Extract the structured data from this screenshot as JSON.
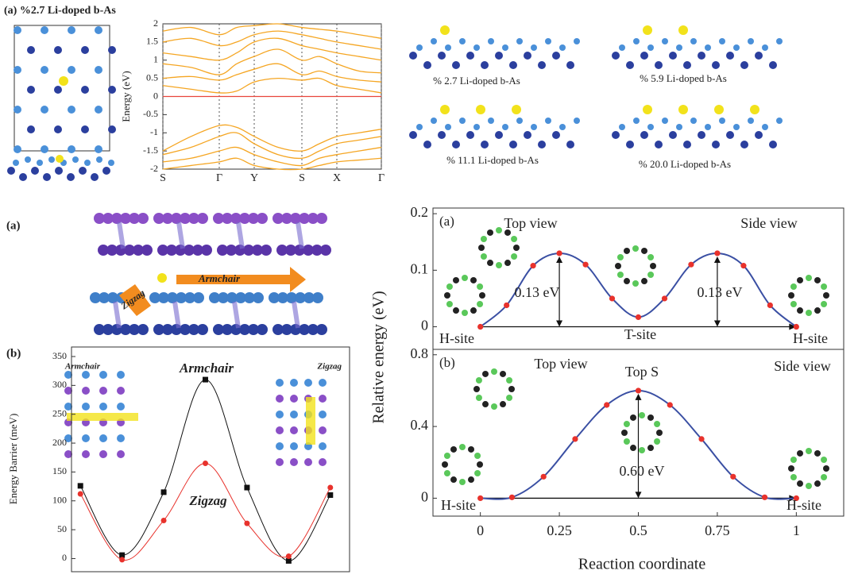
{
  "figure": {
    "panel_top_left": "(a) %2.7 Li-doped b-As",
    "structure_labels": [
      "% 2.7 Li-doped b-As",
      "% 5.9 Li-doped b-As",
      "% 11.1 Li-doped b-As",
      "% 20.0 Li-doped b-As"
    ],
    "panel_mid_left": "(a)",
    "arrow_armchair": "Armchair",
    "arrow_zigzag": "Zigzag",
    "inset_armchair": "Armchair",
    "inset_zigzag": "Zigzag"
  },
  "chart_data": [
    {
      "type": "line",
      "ylabel": "Energy (eV)",
      "x": [
        0,
        0.355,
        0.71,
        0.93,
        1.15,
        1.45,
        1.75,
        1.97,
        2.19,
        2.47,
        2.75
      ],
      "xlim": [
        0,
        2.75
      ],
      "xticks": [
        {
          "value": 0,
          "label": "S"
        },
        {
          "value": 0.71,
          "label": "Γ"
        },
        {
          "value": 1.15,
          "label": "Y"
        },
        {
          "value": 1.75,
          "label": "S"
        },
        {
          "value": 2.19,
          "label": "X"
        },
        {
          "value": 2.75,
          "label": "Γ"
        }
      ],
      "ylim": [
        -2,
        2
      ],
      "yticks": [
        -2,
        -1.5,
        -1,
        -0.5,
        0,
        0.5,
        1,
        1.5,
        2
      ],
      "reference_line": {
        "value": 0,
        "color": "#e8453c"
      },
      "series": [
        {
          "color": "#f5a623",
          "values": [
            0.3,
            0.2,
            0.1,
            0.15,
            0.4,
            0.5,
            0.45,
            0.5,
            0.3,
            0.2,
            0.1
          ]
        },
        {
          "color": "#f5a623",
          "values": [
            0.5,
            0.55,
            0.45,
            0.6,
            0.75,
            0.9,
            0.6,
            0.7,
            0.55,
            0.45,
            0.4
          ]
        },
        {
          "color": "#f5a623",
          "values": [
            0.9,
            0.8,
            0.6,
            0.9,
            1.1,
            1.3,
            1.0,
            1.1,
            0.9,
            0.7,
            0.65
          ]
        },
        {
          "color": "#f5a623",
          "values": [
            1.2,
            1.1,
            1.0,
            1.2,
            1.5,
            1.6,
            1.4,
            1.3,
            1.2,
            1.1,
            1.0
          ]
        },
        {
          "color": "#f5a623",
          "values": [
            1.5,
            1.6,
            1.4,
            1.5,
            1.7,
            1.8,
            1.7,
            1.6,
            1.5,
            1.4,
            1.3
          ]
        },
        {
          "color": "#f5a623",
          "values": [
            1.8,
            1.9,
            1.7,
            1.9,
            1.95,
            2,
            1.9,
            1.85,
            1.8,
            1.7,
            1.6
          ]
        },
        {
          "color": "#f5a623",
          "values": [
            -1.5,
            -1.1,
            -0.8,
            -0.85,
            -1.1,
            -1.4,
            -1.5,
            -1.3,
            -1.1,
            -1,
            -0.9
          ]
        },
        {
          "color": "#f5a623",
          "values": [
            -1.6,
            -1.4,
            -1.1,
            -1.0,
            -1.3,
            -1.6,
            -1.7,
            -1.5,
            -1.3,
            -1.2,
            -1.1
          ]
        },
        {
          "color": "#f5a623",
          "values": [
            -1.8,
            -1.7,
            -1.5,
            -1.4,
            -1.6,
            -1.8,
            -1.9,
            -1.7,
            -1.6,
            -1.5,
            -1.4
          ]
        },
        {
          "color": "#f5a623",
          "values": [
            -2,
            -1.9,
            -1.8,
            -1.7,
            -1.9,
            -2,
            -2,
            -1.9,
            -1.8,
            -1.75,
            -1.7
          ]
        }
      ]
    },
    {
      "type": "barrier",
      "panel": "(b)",
      "ylabel": "Energy Barrier (meV)",
      "categories": [
        null,
        null,
        null,
        null,
        null,
        null,
        null
      ],
      "ylim": [
        -20,
        350
      ],
      "yticks": [
        0,
        50,
        100,
        150,
        200,
        250,
        300,
        350
      ],
      "series": [
        {
          "name": "Armchair",
          "color": "#111111",
          "values": [
            126,
            6,
            115,
            310,
            123,
            -4,
            110
          ]
        },
        {
          "name": "Zigzag",
          "color": "#e8322c",
          "values": [
            112,
            -2,
            66,
            165,
            61,
            4,
            123
          ]
        }
      ]
    },
    {
      "type": "path",
      "panel": "(a)",
      "x": [
        0,
        0.083,
        0.167,
        0.25,
        0.333,
        0.417,
        0.5,
        0.583,
        0.667,
        0.75,
        0.833,
        0.917,
        1
      ],
      "values": [
        0,
        0.038,
        0.108,
        0.13,
        0.11,
        0.05,
        0.017,
        0.05,
        0.11,
        0.13,
        0.108,
        0.038,
        0
      ],
      "line_color": "#3a4fa3",
      "marker_color": "#e8322c",
      "xlim": [
        -0.15,
        1.15
      ],
      "ylim": [
        -0.04,
        0.21
      ],
      "yticks": [
        0,
        0.1,
        0.2
      ],
      "annotations": [
        "Top view",
        "Side view",
        "0.13 eV",
        "0.13 eV",
        "H-site",
        "T-site",
        "H-site"
      ]
    },
    {
      "type": "path",
      "panel": "(b)",
      "xlabel": "Reaction coordinate",
      "ylabel": "Relative energy (eV)",
      "x": [
        0,
        0.1,
        0.2,
        0.3,
        0.4,
        0.5,
        0.6,
        0.7,
        0.8,
        0.9,
        1
      ],
      "values": [
        0,
        0.005,
        0.12,
        0.33,
        0.52,
        0.6,
        0.52,
        0.33,
        0.12,
        0.005,
        0
      ],
      "line_color": "#3a4fa3",
      "marker_color": "#e8322c",
      "xlim": [
        -0.15,
        1.15
      ],
      "ylim": [
        -0.1,
        0.83
      ],
      "yticks": [
        0,
        0.4,
        0.8
      ],
      "xticks": [
        0,
        0.25,
        0.5,
        0.75,
        1
      ],
      "annotations": [
        "Top view",
        "Top S",
        "Side view",
        "0.60 eV",
        "H-site",
        "H-site"
      ]
    }
  ]
}
